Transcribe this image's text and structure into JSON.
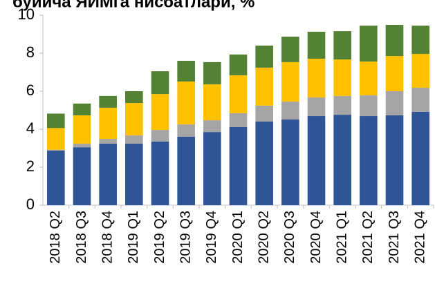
{
  "chart_data": {
    "type": "stacked_bar",
    "title": "буйича ЯИМга нисбатлари, %",
    "categories": [
      "2018 Q2",
      "2018 Q3",
      "2018 Q4",
      "2019 Q1",
      "2019 Q2",
      "2019 Q3",
      "2019 Q4",
      "2020 Q1",
      "2020 Q2",
      "2020 Q3",
      "2020 Q4",
      "2021 Q1",
      "2021 Q2",
      "2021 Q3",
      "2021 Q4"
    ],
    "series": [
      {
        "color": "#2f5597",
        "values": [
          2.87,
          3.05,
          3.24,
          3.24,
          3.35,
          3.6,
          3.85,
          4.11,
          4.4,
          4.51,
          4.69,
          4.76,
          4.69,
          4.73,
          4.91
        ]
      },
      {
        "color": "#a5a5a5",
        "values": [
          0.05,
          0.19,
          0.25,
          0.43,
          0.61,
          0.65,
          0.62,
          0.73,
          0.84,
          0.94,
          0.98,
          0.99,
          1.09,
          1.27,
          1.27
        ]
      },
      {
        "color": "#ffc000",
        "values": [
          1.14,
          1.49,
          1.64,
          1.71,
          1.89,
          2.26,
          1.89,
          2.0,
          2.0,
          2.08,
          2.04,
          1.92,
          1.78,
          1.85,
          1.78
        ]
      },
      {
        "color": "#548235",
        "values": [
          0.76,
          0.62,
          0.62,
          0.62,
          1.2,
          1.09,
          1.17,
          1.09,
          1.16,
          1.34,
          1.42,
          1.49,
          1.89,
          1.64,
          1.49
        ]
      }
    ],
    "ylim": [
      0,
      10
    ],
    "yticks": [
      0,
      2,
      4,
      6,
      8,
      10
    ]
  }
}
